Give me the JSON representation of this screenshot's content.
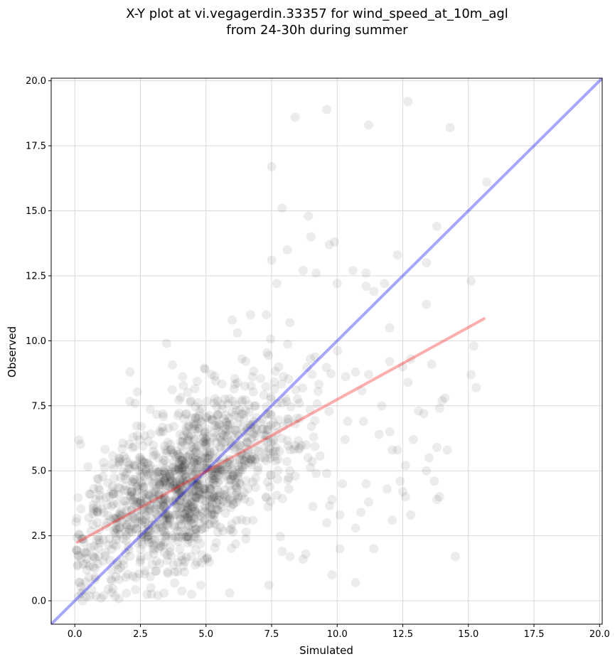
{
  "chart_data": {
    "type": "scatter",
    "title_lines": [
      "X-Y plot at vi.vegagerdin.33357 for wind_speed_at_10m_agl",
      "from 24-30h during summer"
    ],
    "xlabel": "Simulated",
    "ylabel": "Observed",
    "xlim": [
      -0.9,
      20.1
    ],
    "ylim": [
      -0.9,
      20.1
    ],
    "xticks": [
      0.0,
      2.5,
      5.0,
      7.5,
      10.0,
      12.5,
      15.0,
      17.5,
      20.0
    ],
    "yticks": [
      0.0,
      2.5,
      5.0,
      7.5,
      10.0,
      12.5,
      15.0,
      17.5,
      20.0
    ],
    "xtick_labels": [
      "0.0",
      "2.5",
      "5.0",
      "7.5",
      "10.0",
      "12.5",
      "15.0",
      "17.5",
      "20.0"
    ],
    "ytick_labels": [
      "0.0",
      "2.5",
      "5.0",
      "7.5",
      "10.0",
      "12.5",
      "15.0",
      "17.5",
      "20.0"
    ],
    "grid": true,
    "colors": {
      "points": "#000000",
      "identity_line": "#0000ff",
      "regression_line": "#ff0000",
      "grid": "#d9d9d9"
    },
    "identity_line": {
      "x": [
        -0.9,
        20.1
      ],
      "y": [
        -0.9,
        20.1
      ]
    },
    "regression_line": {
      "x": [
        0.1,
        15.6
      ],
      "y": [
        2.25,
        10.85
      ]
    },
    "cloud": {
      "count": 1300,
      "x_mean": 4.2,
      "x_sd": 2.1,
      "slope": 0.55,
      "intercept": 2.2,
      "noise_sd": 1.55
    },
    "points": [
      [
        8.4,
        18.6
      ],
      [
        9.6,
        18.9
      ],
      [
        12.7,
        19.2
      ],
      [
        11.2,
        18.3
      ],
      [
        14.3,
        18.2
      ],
      [
        15.7,
        16.1
      ],
      [
        7.5,
        16.7
      ],
      [
        7.9,
        15.1
      ],
      [
        8.9,
        14.8
      ],
      [
        13.8,
        14.4
      ],
      [
        9.7,
        13.7
      ],
      [
        9.9,
        13.8
      ],
      [
        12.3,
        13.3
      ],
      [
        13.4,
        13.0
      ],
      [
        9.0,
        14.0
      ],
      [
        7.3,
        11.0
      ],
      [
        7.7,
        12.2
      ],
      [
        8.1,
        13.5
      ],
      [
        8.7,
        12.7
      ],
      [
        9.2,
        12.6
      ],
      [
        10.6,
        12.7
      ],
      [
        11.1,
        12.6
      ],
      [
        11.1,
        12.1
      ],
      [
        11.4,
        11.9
      ],
      [
        11.8,
        12.2
      ],
      [
        10.0,
        12.2
      ],
      [
        13.4,
        11.4
      ],
      [
        15.1,
        12.3
      ],
      [
        12.0,
        10.5
      ],
      [
        8.2,
        10.7
      ],
      [
        6.2,
        10.3
      ],
      [
        6.0,
        10.8
      ],
      [
        6.7,
        11.0
      ],
      [
        7.5,
        13.1
      ],
      [
        3.5,
        9.9
      ],
      [
        2.1,
        8.8
      ],
      [
        10.7,
        8.8
      ],
      [
        11.2,
        8.7
      ],
      [
        12.0,
        9.2
      ],
      [
        12.5,
        9.0
      ],
      [
        12.8,
        9.3
      ],
      [
        13.6,
        9.1
      ],
      [
        15.2,
        9.8
      ],
      [
        15.1,
        8.7
      ],
      [
        15.3,
        8.2
      ],
      [
        12.7,
        8.4
      ],
      [
        13.1,
        7.3
      ],
      [
        13.3,
        7.2
      ],
      [
        13.9,
        7.4
      ],
      [
        14.1,
        7.8
      ],
      [
        14.0,
        7.7
      ],
      [
        11.7,
        7.5
      ],
      [
        12.0,
        6.5
      ],
      [
        12.9,
        6.2
      ],
      [
        13.5,
        5.5
      ],
      [
        13.8,
        5.9
      ],
      [
        14.2,
        5.8
      ],
      [
        13.4,
        5.0
      ],
      [
        12.6,
        5.2
      ],
      [
        12.4,
        4.6
      ],
      [
        12.5,
        4.2
      ],
      [
        12.6,
        4.0
      ],
      [
        13.8,
        3.9
      ],
      [
        13.9,
        4.0
      ],
      [
        13.7,
        4.6
      ],
      [
        12.8,
        3.3
      ],
      [
        12.1,
        3.1
      ],
      [
        11.2,
        3.8
      ],
      [
        11.9,
        4.3
      ],
      [
        10.9,
        3.4
      ],
      [
        10.1,
        3.3
      ],
      [
        9.6,
        3.0
      ],
      [
        10.7,
        2.8
      ],
      [
        11.4,
        2.0
      ],
      [
        10.1,
        2.0
      ],
      [
        9.8,
        1.0
      ],
      [
        10.7,
        0.7
      ],
      [
        14.5,
        1.7
      ],
      [
        12.1,
        5.8
      ],
      [
        12.3,
        5.8
      ],
      [
        10.4,
        6.9
      ],
      [
        10.3,
        6.2
      ],
      [
        11.0,
        6.9
      ],
      [
        11.6,
        6.4
      ],
      [
        9.1,
        6.3
      ],
      [
        9.6,
        4.9
      ],
      [
        9.8,
        3.9
      ],
      [
        10.2,
        4.5
      ],
      [
        11.1,
        4.5
      ],
      [
        9.2,
        4.9
      ],
      [
        8.4,
        4.8
      ],
      [
        8.2,
        5.0
      ],
      [
        7.4,
        0.6
      ],
      [
        5.9,
        0.3
      ],
      [
        8.8,
        1.8
      ],
      [
        8.7,
        1.6
      ],
      [
        8.2,
        1.7
      ],
      [
        7.9,
        1.9
      ],
      [
        0.3,
        0.0
      ],
      [
        0.2,
        0.7
      ],
      [
        1.0,
        0.1
      ],
      [
        1.1,
        0.2
      ],
      [
        3.4,
        0.3
      ],
      [
        2.9,
        0.5
      ],
      [
        4.8,
        0.6
      ]
    ]
  }
}
